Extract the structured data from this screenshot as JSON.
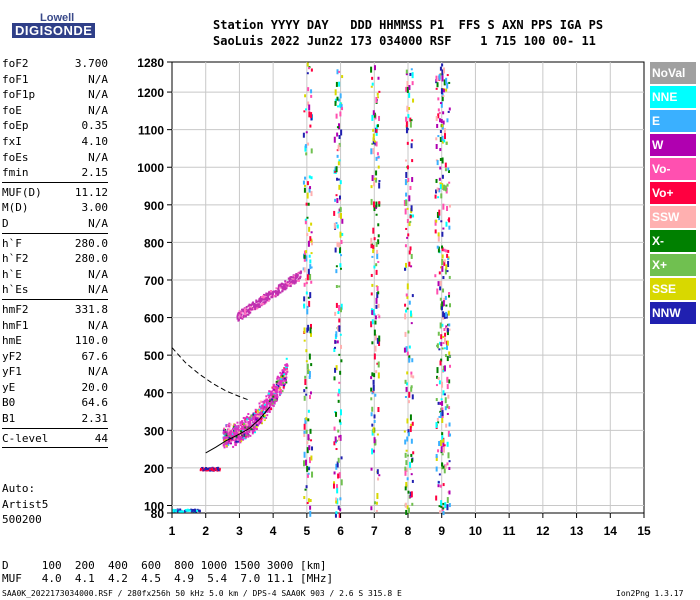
{
  "logo": {
    "line1": "Lowell",
    "line2": "DIGISONDE"
  },
  "header": {
    "row1": "Station YYYY DAY   DDD HHMMSS P1  FFS S AXN PPS IGA PS",
    "row2": "SaoLuis 2022 Jun22 173 034000 RSF    1 715 100 00- 11"
  },
  "params_groups": [
    [
      {
        "name": "foF2",
        "value": "3.700"
      },
      {
        "name": "foF1",
        "value": "N/A"
      },
      {
        "name": "foF1p",
        "value": "N/A"
      },
      {
        "name": "foE",
        "value": "N/A"
      },
      {
        "name": "foEp",
        "value": "0.35"
      },
      {
        "name": "fxI",
        "value": "4.10"
      },
      {
        "name": "foEs",
        "value": "N/A"
      },
      {
        "name": "fmin",
        "value": "2.15"
      }
    ],
    [
      {
        "name": "MUF(D)",
        "value": "11.12"
      },
      {
        "name": "M(D)",
        "value": "3.00"
      },
      {
        "name": "D",
        "value": "N/A"
      }
    ],
    [
      {
        "name": "h`F",
        "value": "280.0"
      },
      {
        "name": "h`F2",
        "value": "280.0"
      },
      {
        "name": "h`E",
        "value": "N/A"
      },
      {
        "name": "h`Es",
        "value": "N/A"
      }
    ],
    [
      {
        "name": "hmF2",
        "value": "331.8"
      },
      {
        "name": "hmF1",
        "value": "N/A"
      },
      {
        "name": "hmE",
        "value": "110.0"
      },
      {
        "name": "yF2",
        "value": "67.6"
      },
      {
        "name": "yF1",
        "value": "N/A"
      },
      {
        "name": "yE",
        "value": "20.0"
      },
      {
        "name": "B0",
        "value": "64.6"
      },
      {
        "name": "B1",
        "value": "2.31"
      }
    ],
    [
      {
        "name": "C-level",
        "value": "44"
      }
    ]
  ],
  "autoscale": [
    "Auto:",
    "Artist5",
    "500200"
  ],
  "legend": [
    {
      "label": "NoVal",
      "color": "#a0a0a0"
    },
    {
      "label": "NNE",
      "color": "#00ffff"
    },
    {
      "label": "E",
      "color": "#3ab0ff"
    },
    {
      "label": "W",
      "color": "#b000b0"
    },
    {
      "label": "Vo-",
      "color": "#ff50b0"
    },
    {
      "label": "Vo+",
      "color": "#ff0040"
    },
    {
      "label": "SSW",
      "color": "#ffb0b0"
    },
    {
      "label": "X-",
      "color": "#008000"
    },
    {
      "label": "X+",
      "color": "#70c050"
    },
    {
      "label": "SSE",
      "color": "#d8d800"
    },
    {
      "label": "NNW",
      "color": "#2020b0"
    }
  ],
  "footer": {
    "d_line": "D     100  200  400  600  800 1000 1500 3000 [km]",
    "muf_line": "MUF   4.0  4.1  4.2  4.5  4.9  5.4  7.0 11.1 [MHz]",
    "file_line": "SAA0K_2022173034000.RSF / 280fx256h 50 kHz 5.0 km / DPS-4 SAA0K 903 / 2.6 S 315.8 E",
    "version": "Ion2Png 1.3.17"
  },
  "chart_data": {
    "type": "scatter",
    "title": "",
    "xlabel": "",
    "ylabel": "",
    "xlim": [
      1,
      15
    ],
    "ylim": [
      80,
      1280
    ],
    "x_ticks": [
      1,
      2,
      3,
      4,
      5,
      6,
      7,
      8,
      9,
      10,
      11,
      12,
      13,
      14,
      15
    ],
    "y_ticks": [
      80,
      100,
      200,
      300,
      400,
      500,
      600,
      700,
      800,
      900,
      1000,
      1100,
      1200,
      1280
    ],
    "grid": true,
    "legend_position": "right",
    "series": [
      {
        "values": [
          [
            2.0,
            240
          ],
          [
            2.3,
            255
          ],
          [
            2.6,
            272
          ],
          [
            3.0,
            290
          ],
          [
            3.3,
            305
          ],
          [
            3.6,
            330
          ],
          [
            3.9,
            362
          ]
        ]
      },
      {
        "values": [
          [
            1.0,
            520
          ],
          [
            1.4,
            480
          ],
          [
            1.8,
            450
          ],
          [
            2.2,
            425
          ],
          [
            2.6,
            405
          ],
          [
            3.0,
            390
          ],
          [
            3.3,
            380
          ]
        ]
      }
    ]
  }
}
